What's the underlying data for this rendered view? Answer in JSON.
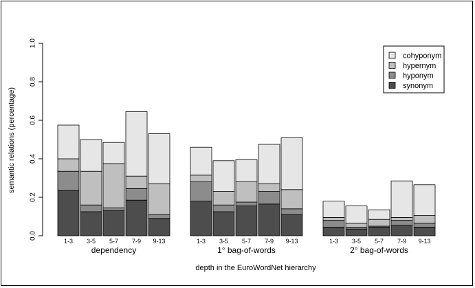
{
  "chart_data": {
    "type": "bar",
    "stacked": true,
    "xlabel": "depth in the EuroWordNet hierarchy",
    "ylabel": "semantic relations (percentage)",
    "ylim": [
      0,
      1.0
    ],
    "yticks": [
      "0.0",
      "0.2",
      "0.4",
      "0.6",
      "0.8",
      "1.0"
    ],
    "legend_position": "top-right",
    "series": [
      {
        "name": "synonym",
        "color": "#4d4d4d"
      },
      {
        "name": "hyponym",
        "color": "#8c8c8c"
      },
      {
        "name": "hypernym",
        "color": "#bfbfbf"
      },
      {
        "name": "cohyponym",
        "color": "#e6e6e6"
      }
    ],
    "groups": [
      {
        "label": "dependency",
        "categories": [
          "1-3",
          "3-5",
          "5-7",
          "7-9",
          "9-13"
        ],
        "synonym": [
          0.235,
          0.125,
          0.13,
          0.185,
          0.09
        ],
        "hyponym": [
          0.1,
          0.035,
          0.015,
          0.06,
          0.02
        ],
        "hypernym": [
          0.065,
          0.175,
          0.23,
          0.065,
          0.16
        ],
        "cohyponym": [
          0.175,
          0.165,
          0.11,
          0.335,
          0.26
        ]
      },
      {
        "label": "1° bag-of-words",
        "categories": [
          "1-3",
          "3-5",
          "5-7",
          "7-9",
          "9-13"
        ],
        "synonym": [
          0.18,
          0.125,
          0.155,
          0.165,
          0.11
        ],
        "hyponym": [
          0.1,
          0.035,
          0.02,
          0.065,
          0.03
        ],
        "hypernym": [
          0.035,
          0.07,
          0.105,
          0.04,
          0.1
        ],
        "cohyponym": [
          0.145,
          0.16,
          0.115,
          0.205,
          0.27
        ]
      },
      {
        "label": "2° bag-of-words",
        "categories": [
          "1-3",
          "3-5",
          "5-7",
          "7-9",
          "9-13"
        ],
        "synonym": [
          0.045,
          0.035,
          0.045,
          0.055,
          0.045
        ],
        "hyponym": [
          0.035,
          0.01,
          0.005,
          0.025,
          0.02
        ],
        "hypernym": [
          0.015,
          0.02,
          0.035,
          0.015,
          0.04
        ],
        "cohyponym": [
          0.085,
          0.09,
          0.05,
          0.19,
          0.16
        ]
      }
    ]
  }
}
